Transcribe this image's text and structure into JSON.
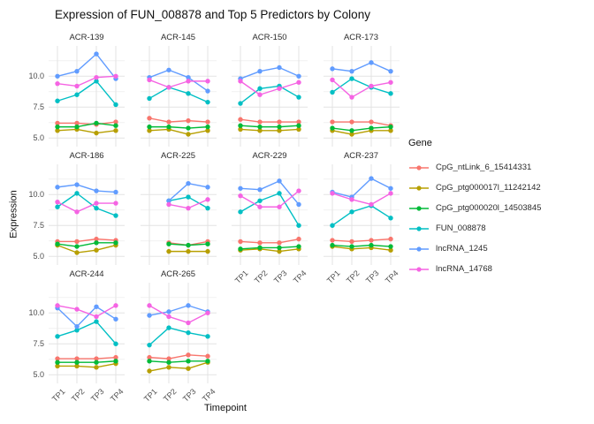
{
  "title": "Expression of FUN_008878 and Top 5 Predictors by Colony",
  "axes": {
    "x_title": "Timepoint",
    "y_title": "Expression",
    "x_ticks": [
      "TP1",
      "TP2",
      "TP3",
      "TP4"
    ],
    "y_ticks": [
      "5.0",
      "7.5",
      "10.0"
    ]
  },
  "legend": {
    "title": "Gene",
    "entries": [
      {
        "label": "CpG_ntLink_6_15414331",
        "color": "#F8766D"
      },
      {
        "label": "CpG_ptg000017l_11242142",
        "color": "#B79F00"
      },
      {
        "label": "CpG_ptg000020l_14503845",
        "color": "#00BA38"
      },
      {
        "label": "FUN_008878",
        "color": "#00BFC4"
      },
      {
        "label": "lncRNA_1245",
        "color": "#619CFF"
      },
      {
        "label": "lncRNA_14768",
        "color": "#F564E3"
      }
    ]
  },
  "chart_data": {
    "type": "line",
    "title": "Expression of FUN_008878 and Top 5 Predictors by Colony",
    "xlabel": "Timepoint",
    "ylabel": "Expression",
    "facet_by": "Colony",
    "x": [
      "TP1",
      "TP2",
      "TP3",
      "TP4"
    ],
    "ylim": [
      4.3,
      12.45
    ],
    "y_major_ticks": [
      5.0,
      7.5,
      10.0
    ],
    "y_minor_ticks": [
      6.25,
      8.75,
      11.25
    ],
    "grid": true,
    "legend_position": "right",
    "genes": [
      {
        "name": "CpG_ntLink_6_15414331",
        "color": "#F8766D"
      },
      {
        "name": "CpG_ptg000017l_11242142",
        "color": "#B79F00"
      },
      {
        "name": "CpG_ptg000020l_14503845",
        "color": "#00BA38"
      },
      {
        "name": "FUN_008878",
        "color": "#00BFC4"
      },
      {
        "name": "lncRNA_1245",
        "color": "#619CFF"
      },
      {
        "name": "lncRNA_14768",
        "color": "#F564E3"
      }
    ],
    "facets": [
      {
        "colony": "ACR-139",
        "series": [
          {
            "gene": "CpG_ntLink_6_15414331",
            "values": [
              6.2,
              6.2,
              6.1,
              6.3
            ]
          },
          {
            "gene": "CpG_ptg000017l_11242142",
            "values": [
              5.6,
              5.7,
              5.4,
              5.6
            ]
          },
          {
            "gene": "CpG_ptg000020l_14503845",
            "values": [
              5.9,
              5.9,
              6.2,
              6.0
            ]
          },
          {
            "gene": "FUN_008878",
            "values": [
              8.0,
              8.5,
              9.6,
              7.7
            ]
          },
          {
            "gene": "lncRNA_1245",
            "values": [
              10.0,
              10.4,
              11.8,
              9.8
            ]
          },
          {
            "gene": "lncRNA_14768",
            "values": [
              9.4,
              9.2,
              9.9,
              10.0
            ]
          }
        ]
      },
      {
        "colony": "ACR-145",
        "series": [
          {
            "gene": "CpG_ntLink_6_15414331",
            "values": [
              6.6,
              6.3,
              6.4,
              6.3
            ]
          },
          {
            "gene": "CpG_ptg000017l_11242142",
            "values": [
              5.6,
              5.7,
              5.3,
              5.6
            ]
          },
          {
            "gene": "CpG_ptg000020l_14503845",
            "values": [
              5.9,
              5.9,
              5.8,
              5.9
            ]
          },
          {
            "gene": "FUN_008878",
            "values": [
              8.2,
              9.1,
              8.6,
              7.9
            ]
          },
          {
            "gene": "lncRNA_1245",
            "values": [
              9.9,
              10.5,
              9.9,
              8.8
            ]
          },
          {
            "gene": "lncRNA_14768",
            "values": [
              9.7,
              9.1,
              9.6,
              9.6
            ]
          }
        ]
      },
      {
        "colony": "ACR-150",
        "series": [
          {
            "gene": "CpG_ntLink_6_15414331",
            "values": [
              6.5,
              6.3,
              6.3,
              6.3
            ]
          },
          {
            "gene": "CpG_ptg000017l_11242142",
            "values": [
              5.7,
              5.6,
              5.6,
              5.7
            ]
          },
          {
            "gene": "CpG_ptg000020l_14503845",
            "values": [
              6.0,
              5.9,
              5.9,
              6.0
            ]
          },
          {
            "gene": "FUN_008878",
            "values": [
              7.8,
              9.0,
              9.2,
              8.3
            ]
          },
          {
            "gene": "lncRNA_1245",
            "values": [
              9.8,
              10.4,
              10.7,
              10.0
            ]
          },
          {
            "gene": "lncRNA_14768",
            "values": [
              9.6,
              8.5,
              9.0,
              9.5
            ]
          }
        ]
      },
      {
        "colony": "ACR-173",
        "series": [
          {
            "gene": "CpG_ntLink_6_15414331",
            "values": [
              6.3,
              6.3,
              6.3,
              6.0
            ]
          },
          {
            "gene": "CpG_ptg000017l_11242142",
            "values": [
              5.6,
              5.3,
              5.6,
              5.6
            ]
          },
          {
            "gene": "CpG_ptg000020l_14503845",
            "values": [
              5.8,
              5.6,
              5.8,
              5.9
            ]
          },
          {
            "gene": "FUN_008878",
            "values": [
              8.7,
              9.8,
              9.1,
              8.6
            ]
          },
          {
            "gene": "lncRNA_1245",
            "values": [
              10.6,
              10.4,
              11.1,
              10.4
            ]
          },
          {
            "gene": "lncRNA_14768",
            "values": [
              9.7,
              8.3,
              9.2,
              9.5
            ]
          }
        ]
      },
      {
        "colony": "ACR-186",
        "series": [
          {
            "gene": "CpG_ntLink_6_15414331",
            "values": [
              6.2,
              6.2,
              6.4,
              6.3
            ]
          },
          {
            "gene": "CpG_ptg000017l_11242142",
            "values": [
              5.9,
              5.3,
              5.5,
              5.9
            ]
          },
          {
            "gene": "CpG_ptg000020l_14503845",
            "values": [
              6.0,
              5.8,
              6.1,
              6.1
            ]
          },
          {
            "gene": "FUN_008878",
            "values": [
              9.0,
              10.1,
              8.9,
              8.3
            ]
          },
          {
            "gene": "lncRNA_1245",
            "values": [
              10.6,
              10.8,
              10.3,
              10.2
            ]
          },
          {
            "gene": "lncRNA_14768",
            "values": [
              9.4,
              8.6,
              9.3,
              9.3
            ]
          }
        ]
      },
      {
        "colony": "ACR-225",
        "series": [
          {
            "gene": "CpG_ntLink_6_15414331",
            "values": [
              null,
              6.1,
              5.9,
              6.2
            ]
          },
          {
            "gene": "CpG_ptg000017l_11242142",
            "values": [
              null,
              5.4,
              5.4,
              5.4
            ]
          },
          {
            "gene": "CpG_ptg000020l_14503845",
            "values": [
              null,
              6.0,
              5.9,
              6.0
            ]
          },
          {
            "gene": "FUN_008878",
            "values": [
              null,
              9.5,
              9.8,
              8.9
            ]
          },
          {
            "gene": "lncRNA_1245",
            "values": [
              null,
              9.5,
              10.9,
              10.6
            ]
          },
          {
            "gene": "lncRNA_14768",
            "values": [
              null,
              9.2,
              8.9,
              9.6
            ]
          }
        ]
      },
      {
        "colony": "ACR-229",
        "series": [
          {
            "gene": "CpG_ntLink_6_15414331",
            "values": [
              6.2,
              6.1,
              6.1,
              6.4
            ]
          },
          {
            "gene": "CpG_ptg000017l_11242142",
            "values": [
              5.5,
              5.6,
              5.4,
              5.6
            ]
          },
          {
            "gene": "CpG_ptg000020l_14503845",
            "values": [
              5.6,
              5.7,
              5.7,
              5.8
            ]
          },
          {
            "gene": "FUN_008878",
            "values": [
              8.6,
              9.5,
              10.1,
              7.5
            ]
          },
          {
            "gene": "lncRNA_1245",
            "values": [
              10.5,
              10.4,
              11.1,
              9.2
            ]
          },
          {
            "gene": "lncRNA_14768",
            "values": [
              9.9,
              9.0,
              9.0,
              10.3
            ]
          }
        ]
      },
      {
        "colony": "ACR-237",
        "series": [
          {
            "gene": "CpG_ntLink_6_15414331",
            "values": [
              6.3,
              6.2,
              6.3,
              6.4
            ]
          },
          {
            "gene": "CpG_ptg000017l_11242142",
            "values": [
              5.8,
              5.6,
              5.7,
              5.5
            ]
          },
          {
            "gene": "CpG_ptg000020l_14503845",
            "values": [
              5.9,
              5.8,
              5.9,
              5.8
            ]
          },
          {
            "gene": "FUN_008878",
            "values": [
              7.5,
              8.6,
              9.1,
              8.1
            ]
          },
          {
            "gene": "lncRNA_1245",
            "values": [
              10.2,
              9.8,
              11.3,
              10.5
            ]
          },
          {
            "gene": "lncRNA_14768",
            "values": [
              10.1,
              9.6,
              9.2,
              10.1
            ]
          }
        ]
      },
      {
        "colony": "ACR-244",
        "series": [
          {
            "gene": "CpG_ntLink_6_15414331",
            "values": [
              6.3,
              6.3,
              6.3,
              6.4
            ]
          },
          {
            "gene": "CpG_ptg000017l_11242142",
            "values": [
              5.7,
              5.7,
              5.6,
              5.9
            ]
          },
          {
            "gene": "CpG_ptg000020l_14503845",
            "values": [
              6.0,
              6.0,
              6.0,
              6.1
            ]
          },
          {
            "gene": "FUN_008878",
            "values": [
              8.1,
              8.6,
              9.3,
              7.5
            ]
          },
          {
            "gene": "lncRNA_1245",
            "values": [
              10.4,
              8.9,
              10.5,
              9.5
            ]
          },
          {
            "gene": "lncRNA_14768",
            "values": [
              10.6,
              10.3,
              9.7,
              10.6
            ]
          }
        ]
      },
      {
        "colony": "ACR-265",
        "series": [
          {
            "gene": "CpG_ntLink_6_15414331",
            "values": [
              6.4,
              6.3,
              6.6,
              6.5
            ]
          },
          {
            "gene": "CpG_ptg000017l_11242142",
            "values": [
              5.3,
              5.6,
              5.5,
              6.0
            ]
          },
          {
            "gene": "CpG_ptg000020l_14503845",
            "values": [
              6.1,
              6.0,
              6.1,
              6.1
            ]
          },
          {
            "gene": "FUN_008878",
            "values": [
              7.4,
              8.8,
              8.4,
              8.1
            ]
          },
          {
            "gene": "lncRNA_1245",
            "values": [
              9.8,
              10.1,
              10.6,
              10.1
            ]
          },
          {
            "gene": "lncRNA_14768",
            "values": [
              10.6,
              9.7,
              9.2,
              10.0
            ]
          }
        ]
      }
    ]
  }
}
